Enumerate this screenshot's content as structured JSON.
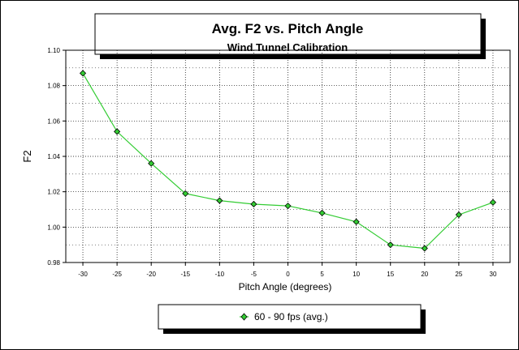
{
  "chart_data": {
    "type": "line",
    "title": "Avg. F2 vs. Pitch Angle",
    "subtitle": "Wind Tunnel Calibration",
    "xlabel": "Pitch Angle (degrees)",
    "ylabel": "F2",
    "xlim": [
      -32.5,
      32.5
    ],
    "ylim": [
      0.98,
      1.1
    ],
    "x_ticks": [
      -30,
      -25,
      -20,
      -15,
      -10,
      -5,
      0,
      5,
      10,
      15,
      20,
      25,
      30
    ],
    "x_tick_labels": [
      "-30",
      "-25",
      "-20",
      "-15",
      "-10",
      "-5",
      "0",
      "5",
      "10",
      "15",
      "20",
      "25",
      "30"
    ],
    "y_ticks": [
      0.98,
      1.0,
      1.02,
      1.04,
      1.06,
      1.08,
      1.1
    ],
    "y_tick_labels": [
      "0.98",
      "1.00",
      "1.02",
      "1.04",
      "1.06",
      "1.08",
      "1.10"
    ],
    "grid": true,
    "legend_position": "bottom-center",
    "series": [
      {
        "name": "60 - 90 fps (avg.)",
        "color": "#33cc33",
        "marker": "diamond",
        "x": [
          -30,
          -25,
          -20,
          -15,
          -10,
          -5,
          0,
          5,
          10,
          15,
          20,
          25,
          30
        ],
        "y": [
          1.087,
          1.054,
          1.036,
          1.019,
          1.015,
          1.013,
          1.012,
          1.008,
          1.003,
          0.99,
          0.988,
          1.007,
          1.014
        ]
      }
    ]
  }
}
